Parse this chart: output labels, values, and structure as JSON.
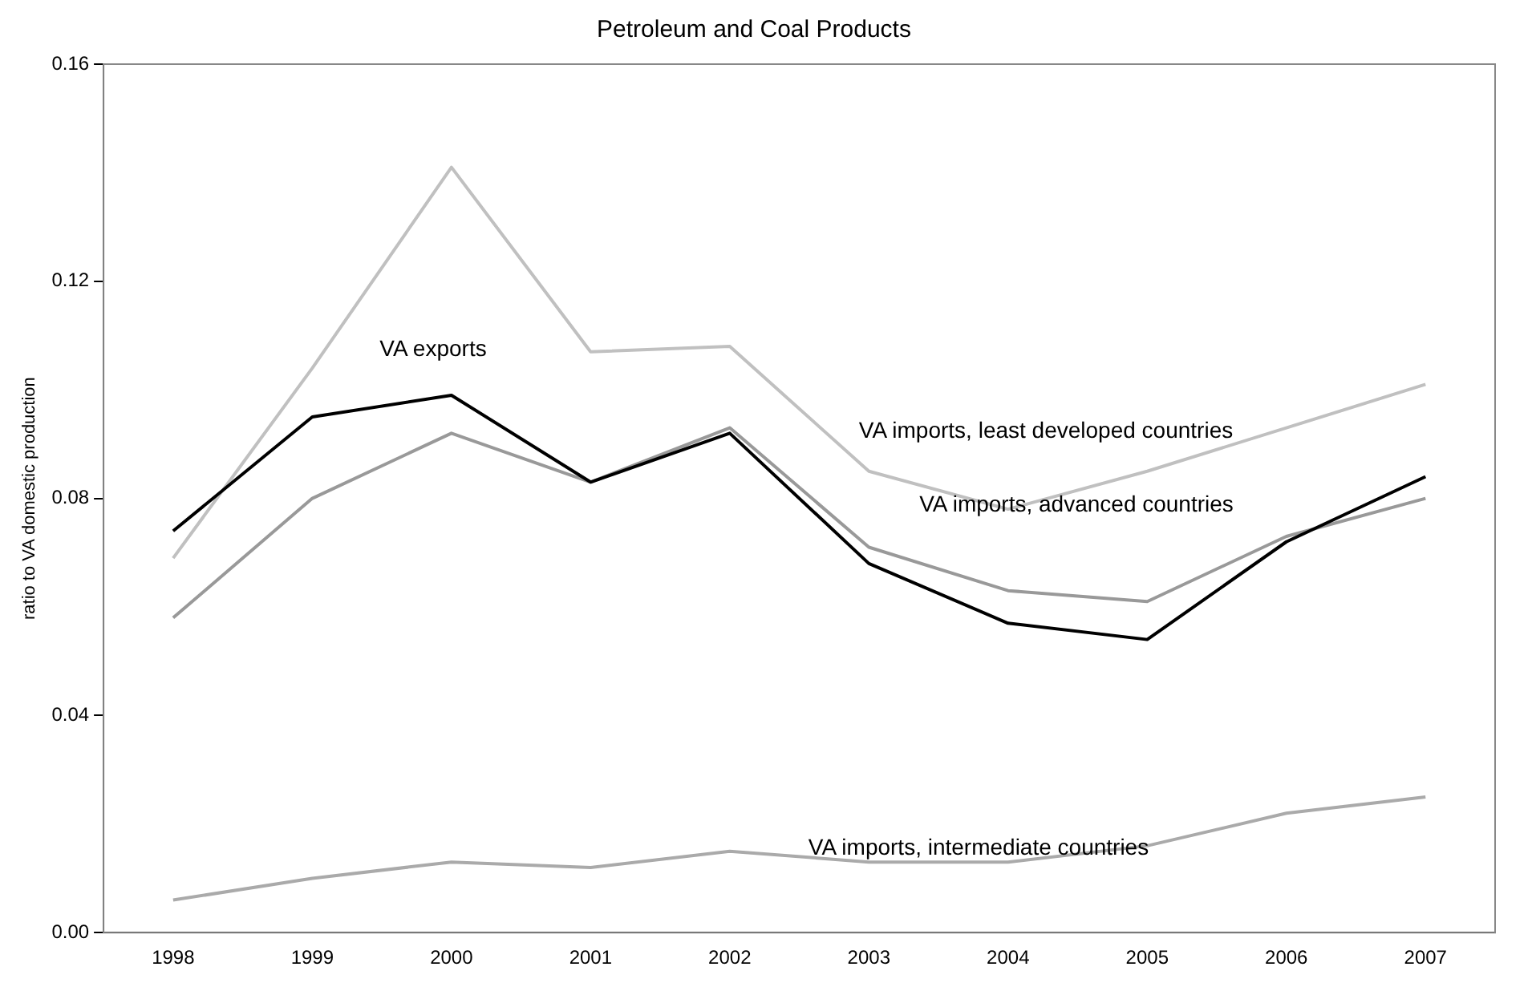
{
  "chart_data": {
    "type": "line",
    "title": "Petroleum and Coal Products",
    "ylabel": "ratio to VA domestic production",
    "categories": [
      "1998",
      "1999",
      "2000",
      "2001",
      "2002",
      "2003",
      "2004",
      "2005",
      "2006",
      "2007"
    ],
    "series": [
      {
        "color": "#000000",
        "values": [
          0.074,
          0.095,
          0.099,
          0.083,
          0.092,
          0.068,
          0.057,
          0.054,
          0.072,
          0.084
        ]
      },
      {
        "color": "#c0c0c0",
        "values": [
          0.069,
          0.104,
          0.141,
          0.107,
          0.108,
          0.085,
          0.078,
          0.085,
          0.093,
          0.101
        ]
      },
      {
        "color": "#999999",
        "values": [
          0.058,
          0.08,
          0.092,
          0.083,
          0.093,
          0.071,
          0.063,
          0.061,
          0.073,
          0.08
        ]
      },
      {
        "color": "#aaaaaa",
        "values": [
          0.006,
          0.01,
          0.013,
          0.012,
          0.015,
          0.013,
          0.013,
          0.016,
          0.022,
          0.025
        ]
      }
    ],
    "annotations": [
      "VA exports",
      "VA imports, least developed countries",
      "VA imports, advanced countries",
      "VA imports, intermediate countries"
    ],
    "ylim": [
      0,
      0.16
    ],
    "yticks": [
      {
        "value": 0,
        "label": "0.00"
      },
      {
        "value": 0.04,
        "label": "0.04"
      },
      {
        "value": 0.08,
        "label": "0.08"
      },
      {
        "value": 0.12,
        "label": "0.12"
      },
      {
        "value": 0.16,
        "label": "0.16"
      }
    ],
    "grid": false,
    "legend": false,
    "marker": "none",
    "line_style": "solid"
  }
}
